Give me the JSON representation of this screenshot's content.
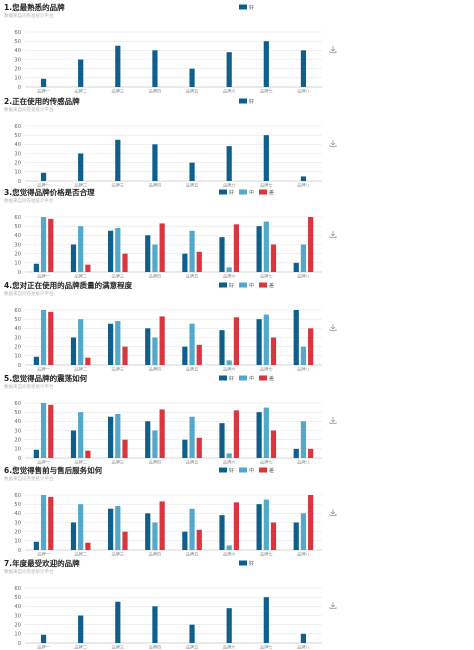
{
  "subtitle_text": "数据来自问卷星统计平台",
  "colors": {
    "好": "#0f5f8c",
    "中": "#54a8c9",
    "差": "#d9363f"
  },
  "download_icon": "download-icon",
  "chart_data": [
    {
      "type": "bar",
      "title": "1.您最熟悉的品牌",
      "categories": [
        "品牌一",
        "品牌二",
        "品牌三",
        "品牌四",
        "品牌五",
        "品牌六",
        "品牌七",
        "品牌八"
      ],
      "ylim": [
        0,
        60
      ],
      "yticks": [
        0,
        10,
        20,
        30,
        40,
        50,
        60
      ],
      "grid": true,
      "legend": "top",
      "series": [
        {
          "name": "好",
          "values": [
            9,
            30,
            45,
            40,
            20,
            38,
            50,
            40
          ]
        }
      ]
    },
    {
      "type": "bar",
      "title": "2.正在使用的传感品牌",
      "categories": [
        "品牌一",
        "品牌二",
        "品牌三",
        "品牌四",
        "品牌五",
        "品牌六",
        "品牌七",
        "品牌八"
      ],
      "ylim": [
        0,
        60
      ],
      "yticks": [
        0,
        10,
        20,
        30,
        40,
        50,
        60
      ],
      "grid": true,
      "legend": "top",
      "series": [
        {
          "name": "好",
          "values": [
            9,
            30,
            45,
            40,
            20,
            38,
            50,
            5
          ]
        }
      ]
    },
    {
      "type": "bar",
      "title": "3.您觉得品牌价格是否合理",
      "categories": [
        "品牌一",
        "品牌二",
        "品牌三",
        "品牌四",
        "品牌五",
        "品牌六",
        "品牌七",
        "品牌八"
      ],
      "ylim": [
        0,
        60
      ],
      "yticks": [
        0,
        10,
        20,
        30,
        40,
        50,
        60
      ],
      "grid": true,
      "legend": "top",
      "series": [
        {
          "name": "好",
          "values": [
            9,
            30,
            45,
            40,
            20,
            38,
            50,
            10
          ]
        },
        {
          "name": "中",
          "values": [
            60,
            50,
            48,
            30,
            45,
            5,
            55,
            30
          ]
        },
        {
          "name": "差",
          "values": [
            58,
            8,
            20,
            53,
            22,
            52,
            30,
            60
          ]
        }
      ]
    },
    {
      "type": "bar",
      "title": "4.您对正在使用的品牌质量的满意程度",
      "categories": [
        "品牌一",
        "品牌二",
        "品牌三",
        "品牌四",
        "品牌五",
        "品牌六",
        "品牌七",
        "品牌八"
      ],
      "ylim": [
        0,
        60
      ],
      "yticks": [
        0,
        10,
        20,
        30,
        40,
        50,
        60
      ],
      "grid": true,
      "legend": "top",
      "series": [
        {
          "name": "好",
          "values": [
            9,
            30,
            45,
            40,
            20,
            38,
            50,
            60
          ]
        },
        {
          "name": "中",
          "values": [
            60,
            50,
            48,
            30,
            45,
            5,
            55,
            20
          ]
        },
        {
          "name": "差",
          "values": [
            58,
            8,
            20,
            53,
            22,
            52,
            30,
            40
          ]
        }
      ]
    },
    {
      "type": "bar",
      "title": "5.您觉得品牌的震荡如何",
      "categories": [
        "品牌一",
        "品牌二",
        "品牌三",
        "品牌四",
        "品牌五",
        "品牌六",
        "品牌七",
        "品牌八"
      ],
      "ylim": [
        0,
        60
      ],
      "yticks": [
        0,
        10,
        20,
        30,
        40,
        50,
        60
      ],
      "grid": true,
      "legend": "top",
      "series": [
        {
          "name": "好",
          "values": [
            9,
            30,
            45,
            40,
            20,
            38,
            50,
            10
          ]
        },
        {
          "name": "中",
          "values": [
            60,
            50,
            48,
            30,
            45,
            5,
            55,
            40
          ]
        },
        {
          "name": "差",
          "values": [
            58,
            8,
            20,
            53,
            22,
            52,
            30,
            10
          ]
        }
      ]
    },
    {
      "type": "bar",
      "title": "6.您觉得售前与售后服务如何",
      "categories": [
        "品牌一",
        "品牌二",
        "品牌三",
        "品牌四",
        "品牌五",
        "品牌六",
        "品牌七",
        "品牌八"
      ],
      "ylim": [
        0,
        60
      ],
      "yticks": [
        0,
        10,
        20,
        30,
        40,
        50,
        60
      ],
      "grid": true,
      "legend": "top",
      "series": [
        {
          "name": "好",
          "values": [
            9,
            30,
            45,
            40,
            20,
            38,
            50,
            30
          ]
        },
        {
          "name": "中",
          "values": [
            60,
            50,
            48,
            30,
            45,
            5,
            55,
            40
          ]
        },
        {
          "name": "差",
          "values": [
            58,
            8,
            20,
            53,
            22,
            52,
            30,
            60
          ]
        }
      ]
    },
    {
      "type": "bar",
      "title": "7.年度最受欢迎的品牌",
      "categories": [
        "品牌一",
        "品牌二",
        "品牌三",
        "品牌四",
        "品牌五",
        "品牌六",
        "品牌七",
        "品牌八"
      ],
      "ylim": [
        0,
        60
      ],
      "yticks": [
        0,
        10,
        20,
        30,
        40,
        50,
        60
      ],
      "grid": true,
      "legend": "top",
      "series": [
        {
          "name": "好",
          "values": [
            9,
            30,
            45,
            40,
            20,
            38,
            50,
            10
          ]
        }
      ]
    }
  ]
}
